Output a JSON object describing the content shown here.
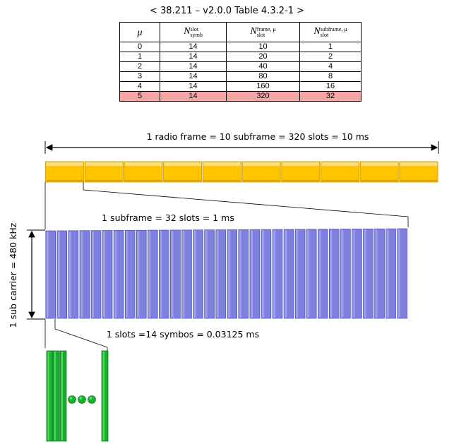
{
  "title": "< 38.211 – v2.0.0 Table 4.3.2-1 >",
  "table": {
    "headers": {
      "mu": "μ",
      "symb_main": "N",
      "symb_sup": "slot",
      "symb_sub": "symb",
      "frame_main": "N",
      "frame_sup": "frame, μ",
      "frame_sub": "slot",
      "subframe_main": "N",
      "subframe_sup": "subframe, μ",
      "subframe_sub": "slot"
    },
    "rows": [
      {
        "mu": "0",
        "symb": "14",
        "frame": "10",
        "subframe": "1"
      },
      {
        "mu": "1",
        "symb": "14",
        "frame": "20",
        "subframe": "2"
      },
      {
        "mu": "2",
        "symb": "14",
        "frame": "40",
        "subframe": "4"
      },
      {
        "mu": "3",
        "symb": "14",
        "frame": "80",
        "subframe": "8"
      },
      {
        "mu": "4",
        "symb": "14",
        "frame": "160",
        "subframe": "16"
      },
      {
        "mu": "5",
        "symb": "14",
        "frame": "320",
        "subframe": "32",
        "highlight": true
      }
    ]
  },
  "labels": {
    "radio_frame": "1 radio frame = 10 subframe = 320 slots = 10 ms",
    "subframe": "1 subframe = 32 slots = 1 ms",
    "subcarrier": "1 sub carrier = 480 kHz",
    "slot": "1 slots =14 symbos = 0.03125 ms"
  },
  "diagram": {
    "subframe_count": 10,
    "slot_count": 32,
    "colors": {
      "subframe_fill": "#ffc400",
      "subframe_top": "#ffe070",
      "subframe_edge": "#c89600",
      "slot_fill": "#7f7fdf",
      "slot_light": "#a6a6f0",
      "slot_edge": "#4d4da8",
      "symbol_fill": "#18b02c",
      "symbol_light": "#58e06a",
      "symbol_edge": "#0a6a18"
    }
  }
}
